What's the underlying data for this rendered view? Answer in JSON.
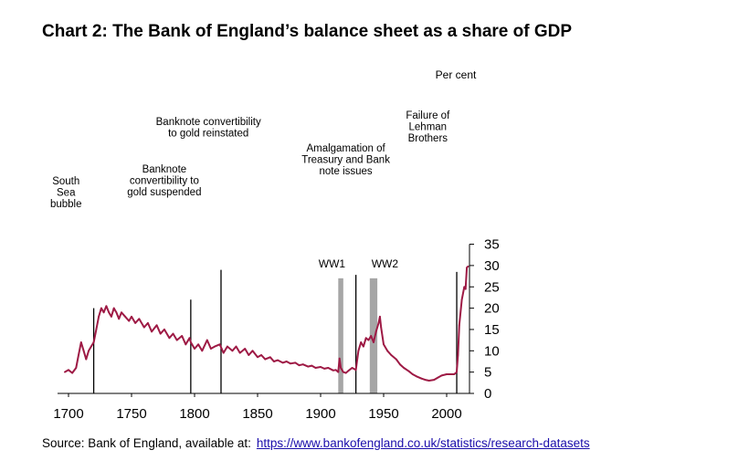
{
  "title": "Chart 2:  The Bank of England’s balance sheet as a share of GDP",
  "source": {
    "prefix": "Source: Bank of England, available at:",
    "link": "https://www.bankofengland.co.uk/statistics/research-datasets"
  },
  "chart_data": {
    "type": "line",
    "title": "The Bank of England’s balance sheet as a share of GDP",
    "xlabel": "",
    "ylabel": "Per cent",
    "xlim": [
      1700,
      2017
    ],
    "ylim": [
      0,
      35
    ],
    "x_ticks": [
      1700,
      1750,
      1800,
      1850,
      1900,
      1950,
      2000
    ],
    "y_ticks": [
      0,
      5,
      10,
      15,
      20,
      25,
      30,
      35
    ],
    "y_axis_side": "right",
    "color": "#9e1a45",
    "series": [
      {
        "name": "Balance sheet (% of GDP)",
        "x": [
          1697,
          1700,
          1703,
          1706,
          1708,
          1710,
          1712,
          1714,
          1716,
          1718,
          1720,
          1722,
          1724,
          1726,
          1728,
          1730,
          1732,
          1734,
          1736,
          1738,
          1740,
          1742,
          1745,
          1748,
          1750,
          1753,
          1756,
          1760,
          1763,
          1766,
          1770,
          1773,
          1776,
          1780,
          1783,
          1786,
          1790,
          1793,
          1796,
          1797,
          1800,
          1803,
          1806,
          1810,
          1813,
          1816,
          1820,
          1823,
          1826,
          1830,
          1833,
          1836,
          1840,
          1843,
          1846,
          1850,
          1853,
          1856,
          1860,
          1863,
          1866,
          1870,
          1873,
          1876,
          1880,
          1883,
          1886,
          1890,
          1893,
          1896,
          1900,
          1903,
          1906,
          1910,
          1912,
          1914,
          1915,
          1916,
          1918,
          1920,
          1922,
          1925,
          1928,
          1930,
          1932,
          1934,
          1936,
          1938,
          1940,
          1942,
          1944,
          1946,
          1947,
          1948,
          1950,
          1953,
          1956,
          1960,
          1963,
          1966,
          1970,
          1973,
          1976,
          1980,
          1983,
          1986,
          1990,
          1993,
          1996,
          2000,
          2003,
          2006,
          2008,
          2009,
          2010,
          2012,
          2014,
          2015,
          2016,
          2017
        ],
        "values": [
          5,
          5.5,
          4.8,
          6,
          9,
          12,
          10,
          8,
          10,
          11,
          12,
          15,
          18,
          20,
          19,
          20.5,
          19,
          18,
          20,
          19,
          17.5,
          19,
          18,
          17,
          18,
          16.5,
          17.5,
          15.5,
          16.5,
          14.5,
          16,
          14,
          15,
          13,
          14,
          12.5,
          13.5,
          11.5,
          13,
          12,
          10.5,
          11.5,
          10,
          12.5,
          10.5,
          11,
          11.5,
          9.5,
          11,
          10,
          11,
          9.5,
          10.5,
          9,
          10,
          8.5,
          9,
          8,
          8.5,
          7.5,
          7.8,
          7.2,
          7.5,
          7,
          7.2,
          6.6,
          6.8,
          6.3,
          6.5,
          6,
          6.2,
          5.8,
          6,
          5.4,
          5.5,
          5,
          8.2,
          6,
          5,
          4.8,
          5.3,
          6,
          5.5,
          10,
          12,
          11,
          13,
          12.5,
          13.5,
          12,
          14.5,
          16.5,
          18,
          15.5,
          11.5,
          10,
          9,
          8,
          6.8,
          6,
          5.2,
          4.5,
          4,
          3.5,
          3.2,
          3,
          3.2,
          3.7,
          4.2,
          4.5,
          4.5,
          4.5,
          5,
          9,
          16,
          22,
          25,
          24.5,
          29.5,
          29.8
        ]
      }
    ],
    "shaded_periods": [
      {
        "label": "WW1",
        "from": 1914,
        "to": 1918
      },
      {
        "label": "WW2",
        "from": 1939,
        "to": 1945
      }
    ],
    "events": [
      {
        "year": 1720,
        "label": [
          "South",
          "Sea",
          "bubble"
        ]
      },
      {
        "year": 1797,
        "label": [
          "Banknote",
          "convertibility to",
          "gold suspended"
        ]
      },
      {
        "year": 1821,
        "label": [
          "Banknote convertibility",
          "to gold reinstated"
        ]
      },
      {
        "year": 1928,
        "label": [
          "Amalgamation of",
          "Treasury and Bank",
          "note issues"
        ]
      },
      {
        "year": 2008,
        "label": [
          "Failure of",
          "Lehman",
          "Brothers"
        ]
      }
    ]
  }
}
